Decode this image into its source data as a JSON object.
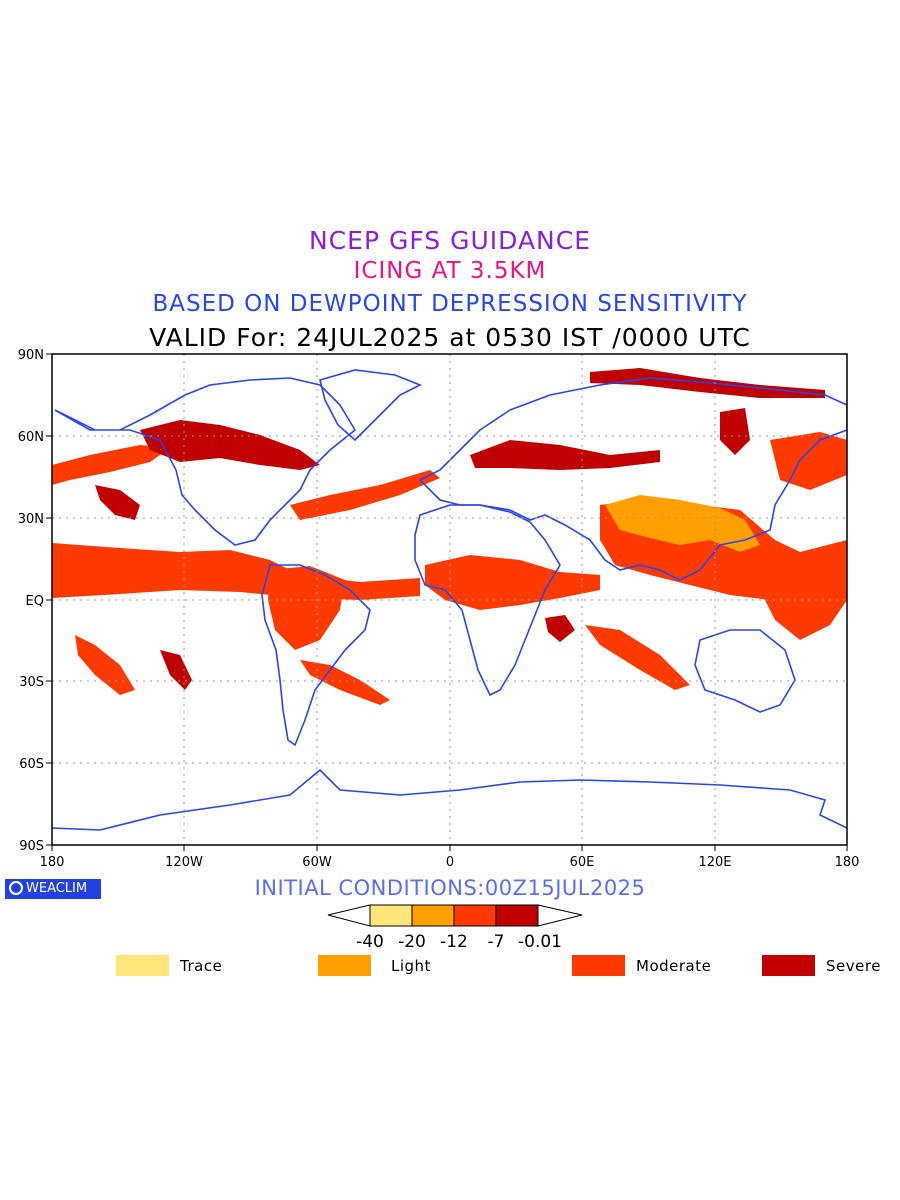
{
  "titles": {
    "line1": "NCEP GFS GUIDANCE",
    "line2": "ICING AT 3.5KM",
    "line3": "BASED ON DEWPOINT DEPRESSION SENSITIVITY",
    "line4": "VALID For: 24JUL2025 at 0530 IST /0000 UTC"
  },
  "logo": {
    "text": "WEACLIM",
    "icon": "copyright-circle-icon"
  },
  "initial_conditions": "INITIAL CONDITIONS:00Z15JUL2025",
  "axes": {
    "lat_ticks": [
      "90N",
      "60N",
      "30N",
      "EQ",
      "30S",
      "60S",
      "90S"
    ],
    "lon_ticks": [
      "180",
      "120W",
      "60W",
      "0",
      "60E",
      "120E",
      "180"
    ]
  },
  "colorbar": {
    "labels": [
      "-40",
      "-20",
      "-12",
      "-7",
      "-0.01"
    ],
    "colors": [
      "#ffe57a",
      "#ff9f00",
      "#ff3a00",
      "#c00000"
    ]
  },
  "legend": [
    {
      "label": "Trace",
      "color": "#ffe57a"
    },
    {
      "label": "Light",
      "color": "#ff9f00"
    },
    {
      "label": "Moderate",
      "color": "#ff3a00"
    },
    {
      "label": "Severe",
      "color": "#c00000"
    }
  ],
  "colors": {
    "coast": "#2a45ea",
    "border": "#2a45ea"
  }
}
